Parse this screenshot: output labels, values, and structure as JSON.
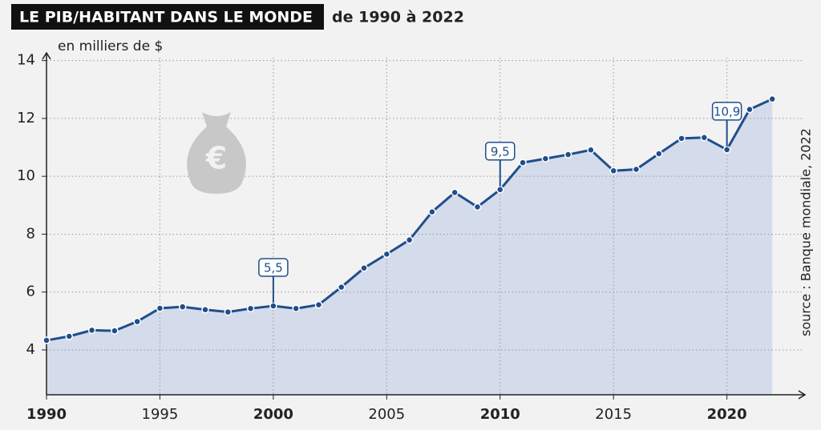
{
  "chart_data": {
    "type": "line",
    "title": "LE PIB/HABITANT DANS LE MONDE",
    "subtitle": "de 1990 à 2022",
    "y_label": "en milliers de $",
    "source": "source : Banque mondiale, 2022",
    "x": [
      1990,
      1991,
      1992,
      1993,
      1994,
      1995,
      1996,
      1997,
      1998,
      1999,
      2000,
      2001,
      2002,
      2003,
      2004,
      2005,
      2006,
      2007,
      2008,
      2009,
      2010,
      2011,
      2012,
      2013,
      2014,
      2015,
      2016,
      2017,
      2018,
      2019,
      2020,
      2021,
      2022
    ],
    "series": [
      {
        "color": "#1f4e8c",
        "values": [
          4.33,
          4.47,
          4.68,
          4.66,
          4.98,
          5.44,
          5.49,
          5.39,
          5.31,
          5.43,
          5.52,
          5.43,
          5.56,
          6.17,
          6.83,
          7.31,
          7.8,
          8.77,
          9.44,
          8.94,
          9.54,
          10.47,
          10.61,
          10.75,
          10.91,
          10.19,
          10.24,
          10.78,
          11.31,
          11.34,
          10.92,
          12.31,
          12.67
        ],
        "value_labels": [
          null,
          null,
          null,
          null,
          null,
          null,
          null,
          null,
          null,
          null,
          "5,5",
          null,
          null,
          null,
          null,
          null,
          null,
          null,
          null,
          null,
          "9,5",
          null,
          null,
          null,
          null,
          null,
          null,
          null,
          null,
          null,
          "10,9",
          null,
          null
        ]
      }
    ],
    "xlim": [
      1990,
      2023.3
    ],
    "xticks": [
      1990,
      1995,
      2000,
      2005,
      2010,
      2015,
      2020
    ],
    "ylim": [
      2.45,
      14.1
    ],
    "yticks": [
      4,
      6,
      8,
      10,
      12,
      14
    ],
    "grid": true,
    "area_color": "#d4dbea"
  }
}
